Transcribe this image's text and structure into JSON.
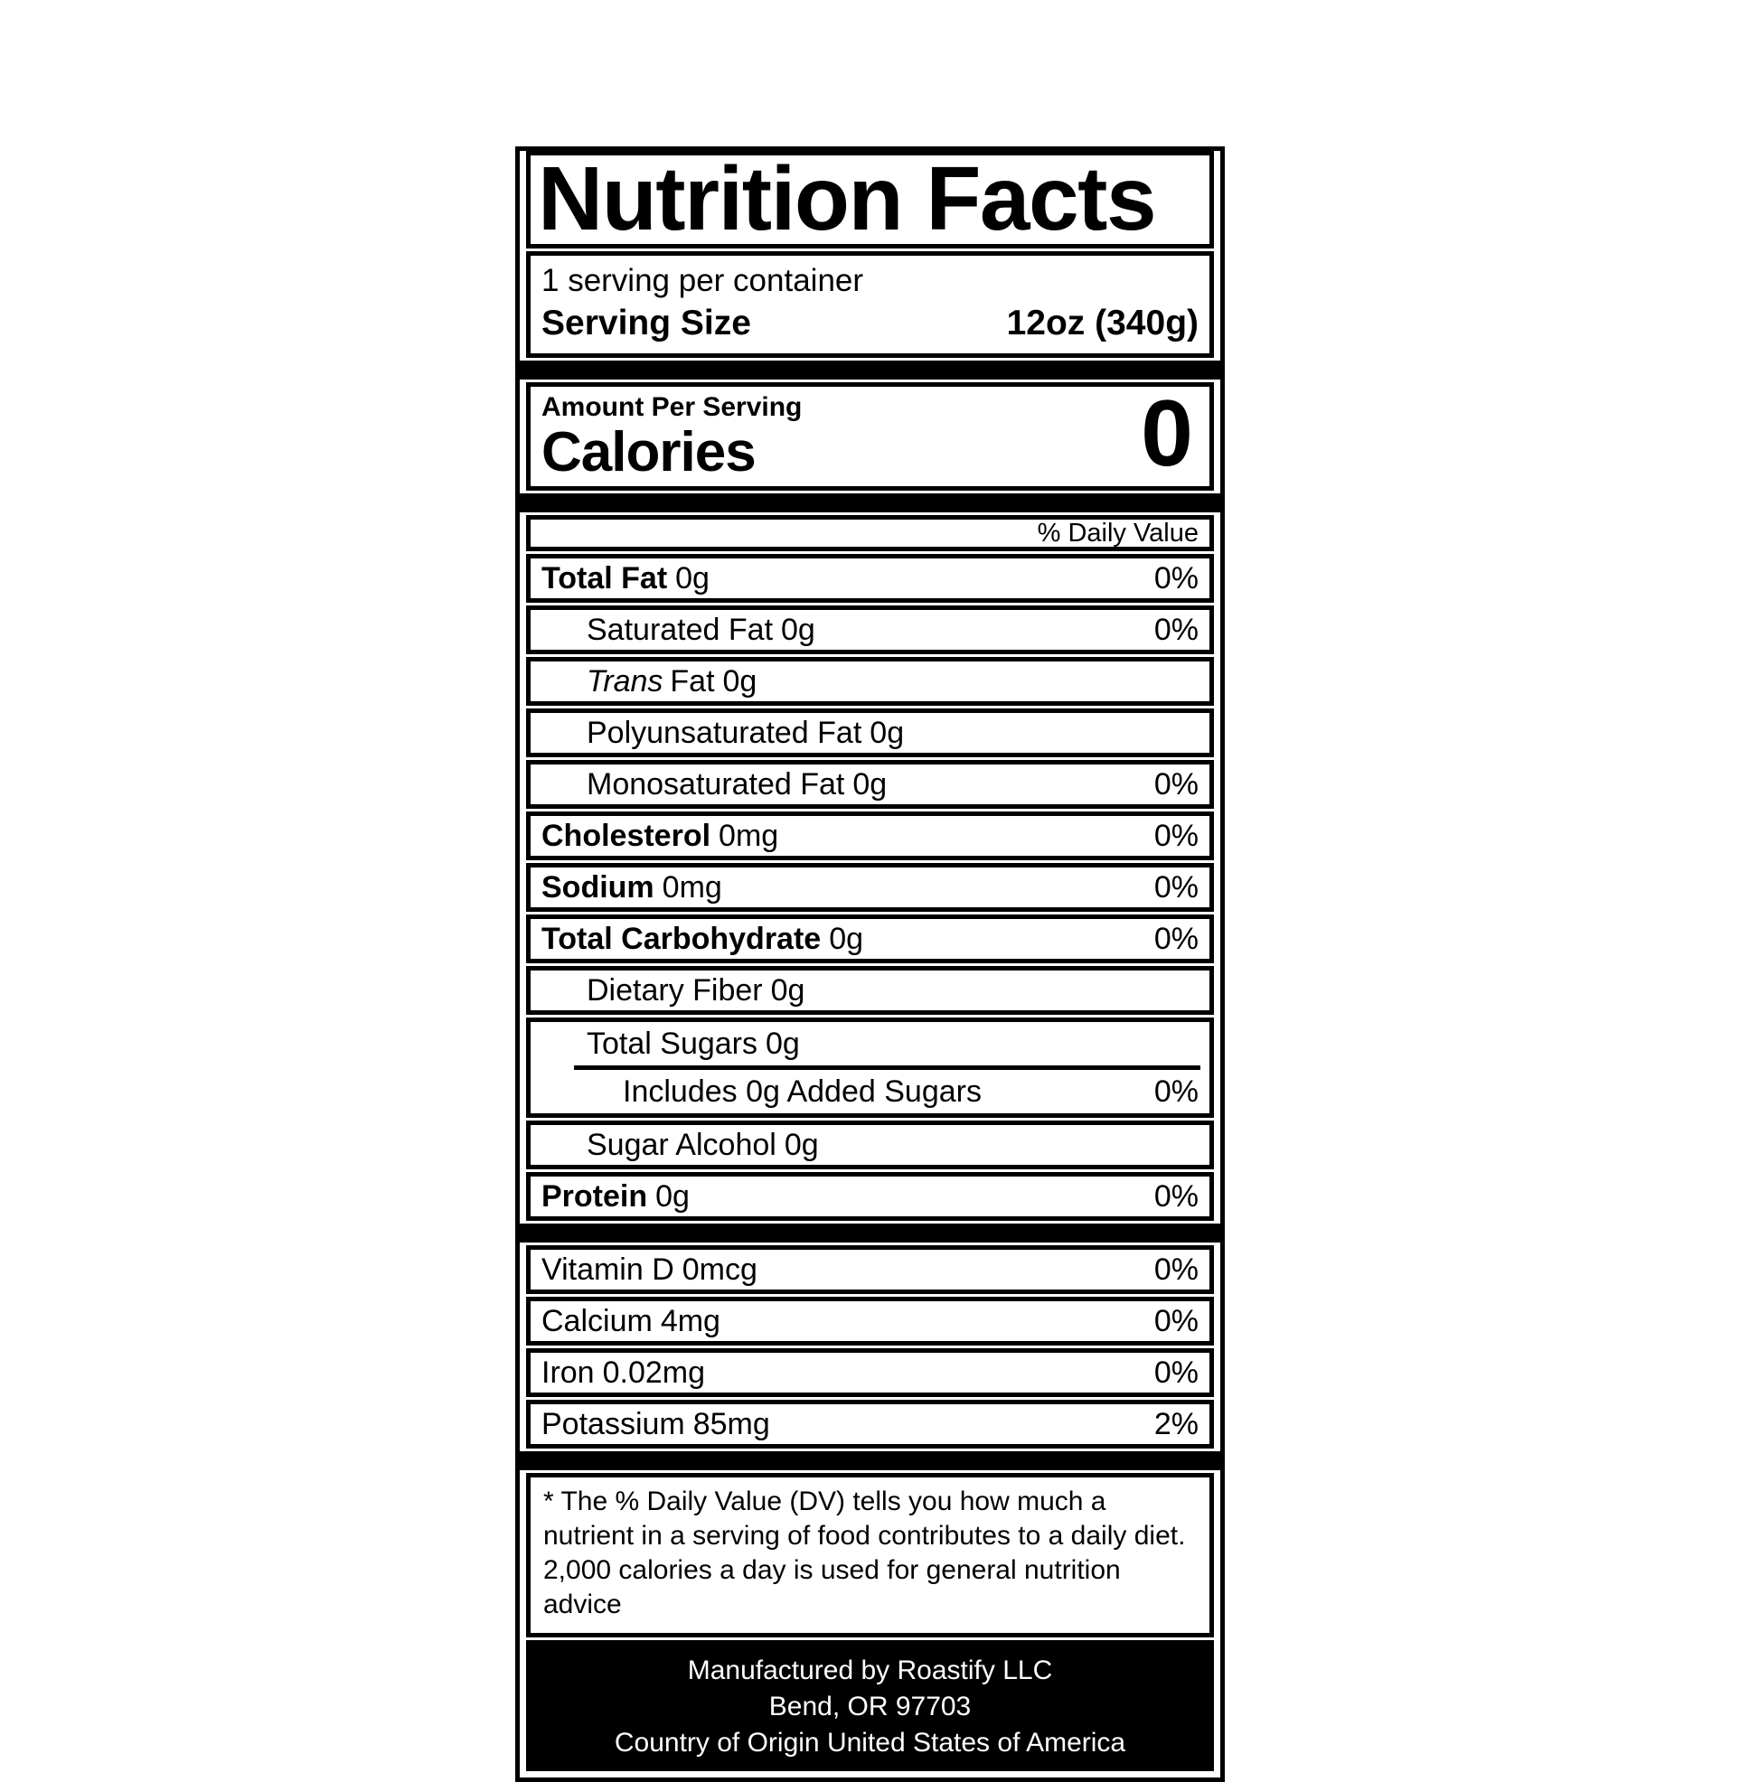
{
  "label": {
    "title": "Nutrition Facts",
    "servings_per_container": "1 serving per container",
    "serving_size": {
      "label": "Serving Size",
      "value": "12oz (340g)"
    },
    "amount_per_serving": "Amount Per Serving",
    "calories": {
      "label": "Calories",
      "value": "0"
    },
    "daily_value_header": "% Daily Value",
    "colors": {
      "ink": "#000000",
      "paper": "#ffffff"
    },
    "nutrient_rows": [
      {
        "label": "Total Fat",
        "amount": "0g",
        "percent": "0%"
      },
      {
        "label": "Saturated Fat",
        "amount": "0g",
        "percent": "0%"
      },
      {
        "label_italic": "Trans",
        "label": "Fat",
        "amount": "0g"
      },
      {
        "label": "Polyunsaturated Fat",
        "amount": "0g"
      },
      {
        "label": "Monosaturated Fat",
        "amount": "0g",
        "percent": "0%"
      },
      {
        "label": "Cholesterol",
        "amount": "0mg",
        "percent": "0%"
      },
      {
        "label": "Sodium",
        "amount": "0mg",
        "percent": "0%"
      },
      {
        "label": "Total Carbohydrate",
        "amount": "0g",
        "percent": "0%"
      },
      {
        "label": "Dietary Fiber",
        "amount": "0g"
      },
      {
        "label": "Total Sugars",
        "amount": "0g"
      },
      {
        "label": "Includes 0g Added Sugars",
        "percent": "0%"
      },
      {
        "label": "Sugar Alcohol",
        "amount": "0g"
      },
      {
        "label": "Protein",
        "amount": "0g",
        "percent": "0%"
      }
    ],
    "micronutrients": [
      {
        "label": "Vitamin D",
        "amount": "0mcg",
        "percent": "0%"
      },
      {
        "label": "Calcium",
        "amount": "4mg",
        "percent": "0%"
      },
      {
        "label": "Iron",
        "amount": "0.02mg",
        "percent": "0%"
      },
      {
        "label": "Potassium",
        "amount": "85mg",
        "percent": "2%"
      }
    ],
    "footnote": "* The % Daily Value (DV) tells you how much a nutrient in a serving of food contributes to a daily diet. 2,000 calories a day is used for general nutrition advice",
    "manufacturer": {
      "line1": "Manufactured by Roastify LLC",
      "line2": "Bend, OR 97703",
      "line3": "Country of Origin United States of America"
    }
  }
}
